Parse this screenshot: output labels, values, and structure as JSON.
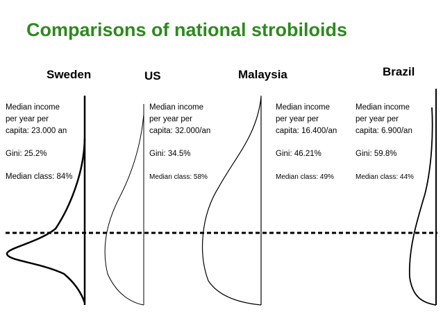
{
  "title": "Comparisons of national strobiloids",
  "countries": [
    {
      "name": "Sweden",
      "income_lines": [
        "Median income",
        "per year per",
        "capita: 23.000 an"
      ],
      "gini": "Gini:  25.2%",
      "median_class": "Median class: 84%"
    },
    {
      "name": "US",
      "income_lines": [
        "Median income",
        "per year per",
        "capita: 32.000/an"
      ],
      "gini": "Gini:  34.5%",
      "median_class": "Median class: 58%"
    },
    {
      "name": "Malaysia",
      "income_lines": [
        "Median income",
        "per year per",
        "capita: 16.400/an"
      ],
      "gini": "Gini: 46.21%",
      "median_class": "Median class: 49%"
    },
    {
      "name": "Brazil",
      "income_lines": [
        "Median income",
        "per year per",
        "capita: 6.900/an"
      ],
      "gini": "Gini: 59.8%",
      "median_class": "Median class: 44%"
    }
  ],
  "colors": {
    "title": "#2d8a1e",
    "lines": "#000000"
  }
}
